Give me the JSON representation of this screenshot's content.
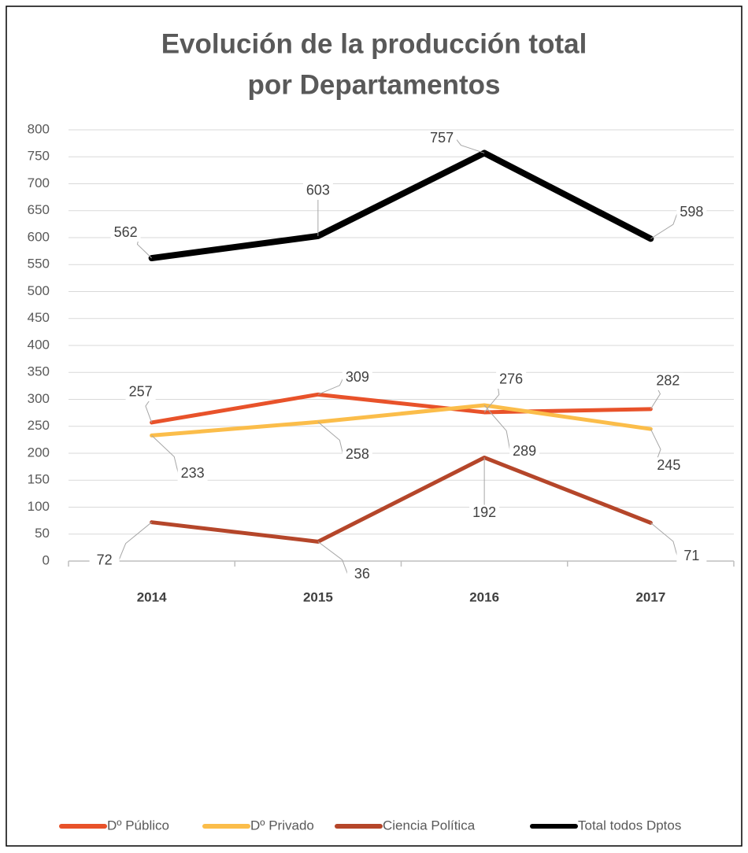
{
  "chart_data": {
    "type": "line",
    "title": [
      "Evolución de la producción total",
      "por Departamentos"
    ],
    "categories": [
      "2014",
      "2015",
      "2016",
      "2017"
    ],
    "series": [
      {
        "name": "Dº Público",
        "color": "#e8522a",
        "values": [
          257,
          309,
          276,
          282
        ]
      },
      {
        "name": "Dº Privado",
        "color": "#fbbd4a",
        "values": [
          233,
          258,
          289,
          245
        ]
      },
      {
        "name": "Ciencia Política",
        "color": "#b5462a",
        "values": [
          72,
          36,
          192,
          71
        ]
      },
      {
        "name": "Total todos Dptos",
        "color": "#000000",
        "values": [
          562,
          603,
          757,
          598
        ]
      }
    ],
    "ylim": [
      0,
      800
    ],
    "yticks": [
      0,
      50,
      100,
      150,
      200,
      250,
      300,
      350,
      400,
      450,
      500,
      550,
      600,
      650,
      700,
      750,
      800
    ],
    "grid": true,
    "legend": "bottom"
  }
}
